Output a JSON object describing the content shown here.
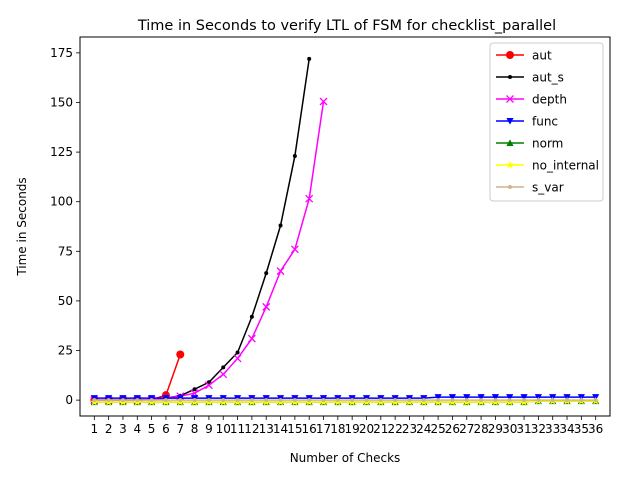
{
  "chart_data": {
    "type": "line",
    "title": "Time in Seconds to verify LTL of FSM for checklist_parallel",
    "xlabel": "Number of Checks",
    "ylabel": "Time in Seconds",
    "x": [
      1,
      2,
      3,
      4,
      5,
      6,
      7,
      8,
      9,
      10,
      11,
      12,
      13,
      14,
      15,
      16,
      17,
      18,
      19,
      20,
      21,
      22,
      23,
      24,
      25,
      26,
      27,
      28,
      29,
      30,
      31,
      32,
      33,
      34,
      35,
      36
    ],
    "x_tick_labels": [
      "1",
      "2",
      "3",
      "4",
      "5",
      "6",
      "7",
      "8",
      "9",
      "10",
      "11",
      "12",
      "13",
      "14",
      "15",
      "16",
      "17",
      "18",
      "19",
      "20",
      "21",
      "22",
      "23",
      "24",
      "25",
      "26",
      "27",
      "28",
      "29",
      "30",
      "31",
      "32",
      "33",
      "34",
      "35",
      "36"
    ],
    "xlim": [
      0.0,
      37.0
    ],
    "ylim": [
      -8,
      183
    ],
    "y_ticks": [
      0,
      25,
      50,
      75,
      100,
      125,
      150,
      175
    ],
    "y_tick_labels": [
      "0",
      "25",
      "50",
      "75",
      "100",
      "125",
      "150",
      "175"
    ],
    "grid": false,
    "legend_position": "top-right",
    "series": [
      {
        "name": "aut",
        "color": "#ff0000",
        "marker": "circle",
        "values": [
          0,
          0,
          0,
          0,
          0.3,
          2.5,
          23,
          null,
          null,
          null,
          null,
          null,
          null,
          null,
          null,
          null,
          null,
          null,
          null,
          null,
          null,
          null,
          null,
          null,
          null,
          null,
          null,
          null,
          null,
          null,
          null,
          null,
          null,
          null,
          null,
          null
        ]
      },
      {
        "name": "aut_s",
        "color": "#000000",
        "marker": "point",
        "values": [
          0,
          0,
          0,
          0,
          0.3,
          1,
          2.2,
          5.5,
          9,
          16.5,
          24,
          42,
          64,
          88,
          123,
          172,
          null,
          null,
          null,
          null,
          null,
          null,
          null,
          null,
          null,
          null,
          null,
          null,
          null,
          null,
          null,
          null,
          null,
          null,
          null,
          null
        ]
      },
      {
        "name": "depth",
        "color": "#ff00ff",
        "marker": "x",
        "values": [
          0,
          0,
          0,
          0,
          0.3,
          1,
          2,
          3.5,
          7.5,
          13,
          21,
          31,
          47,
          65,
          76,
          101.5,
          150.5,
          null,
          null,
          null,
          null,
          null,
          null,
          null,
          null,
          null,
          null,
          null,
          null,
          null,
          null,
          null,
          null,
          null,
          null,
          null
        ]
      },
      {
        "name": "func",
        "color": "#0000ff",
        "marker": "triangle-down",
        "values": [
          1,
          1,
          1,
          1,
          1,
          1,
          1,
          1,
          1,
          1,
          1,
          1,
          1,
          1,
          1,
          1,
          1,
          1,
          1,
          1,
          1,
          1,
          1,
          1,
          1.5,
          1.5,
          1.5,
          1.5,
          1.5,
          1.5,
          1.5,
          1.5,
          1.5,
          1.5,
          1.5,
          1.5
        ]
      },
      {
        "name": "norm",
        "color": "#008000",
        "marker": "triangle-up",
        "values": [
          -1,
          -1,
          -1,
          -1,
          -1,
          -1,
          -1,
          -1,
          -1,
          -1,
          -1,
          -1,
          -1,
          -1,
          -1,
          -1,
          -1,
          -1,
          -1,
          -1,
          -1,
          -1,
          -1,
          -1,
          -1,
          -1,
          -1,
          -1,
          -1,
          -1,
          -1,
          -0.5,
          -0.5,
          -0.5,
          -0.5,
          -0.5
        ]
      },
      {
        "name": "no_internal",
        "color": "#ffff00",
        "marker": "star",
        "values": [
          -1,
          -1,
          -1,
          -1,
          -1,
          -1,
          -1,
          -1,
          -1,
          -1,
          -1,
          -1,
          -1,
          -1,
          -1,
          -1,
          -1,
          -1,
          -1,
          -1,
          -1,
          -1,
          -1,
          -1,
          -1,
          -1,
          -1,
          -1,
          -1,
          -1,
          -1,
          -0.5,
          -0.5,
          -0.5,
          -0.5,
          -0.5
        ]
      },
      {
        "name": "s_var",
        "color": "#d2b48c",
        "marker": "point",
        "values": [
          0,
          0,
          0,
          0,
          0,
          0,
          0,
          0,
          0,
          0,
          0,
          0,
          0,
          0,
          0,
          0,
          0,
          0,
          0,
          0,
          0,
          0,
          0,
          0,
          0,
          0,
          0,
          0,
          0,
          0,
          0,
          0,
          0,
          0,
          0,
          0
        ]
      }
    ]
  }
}
